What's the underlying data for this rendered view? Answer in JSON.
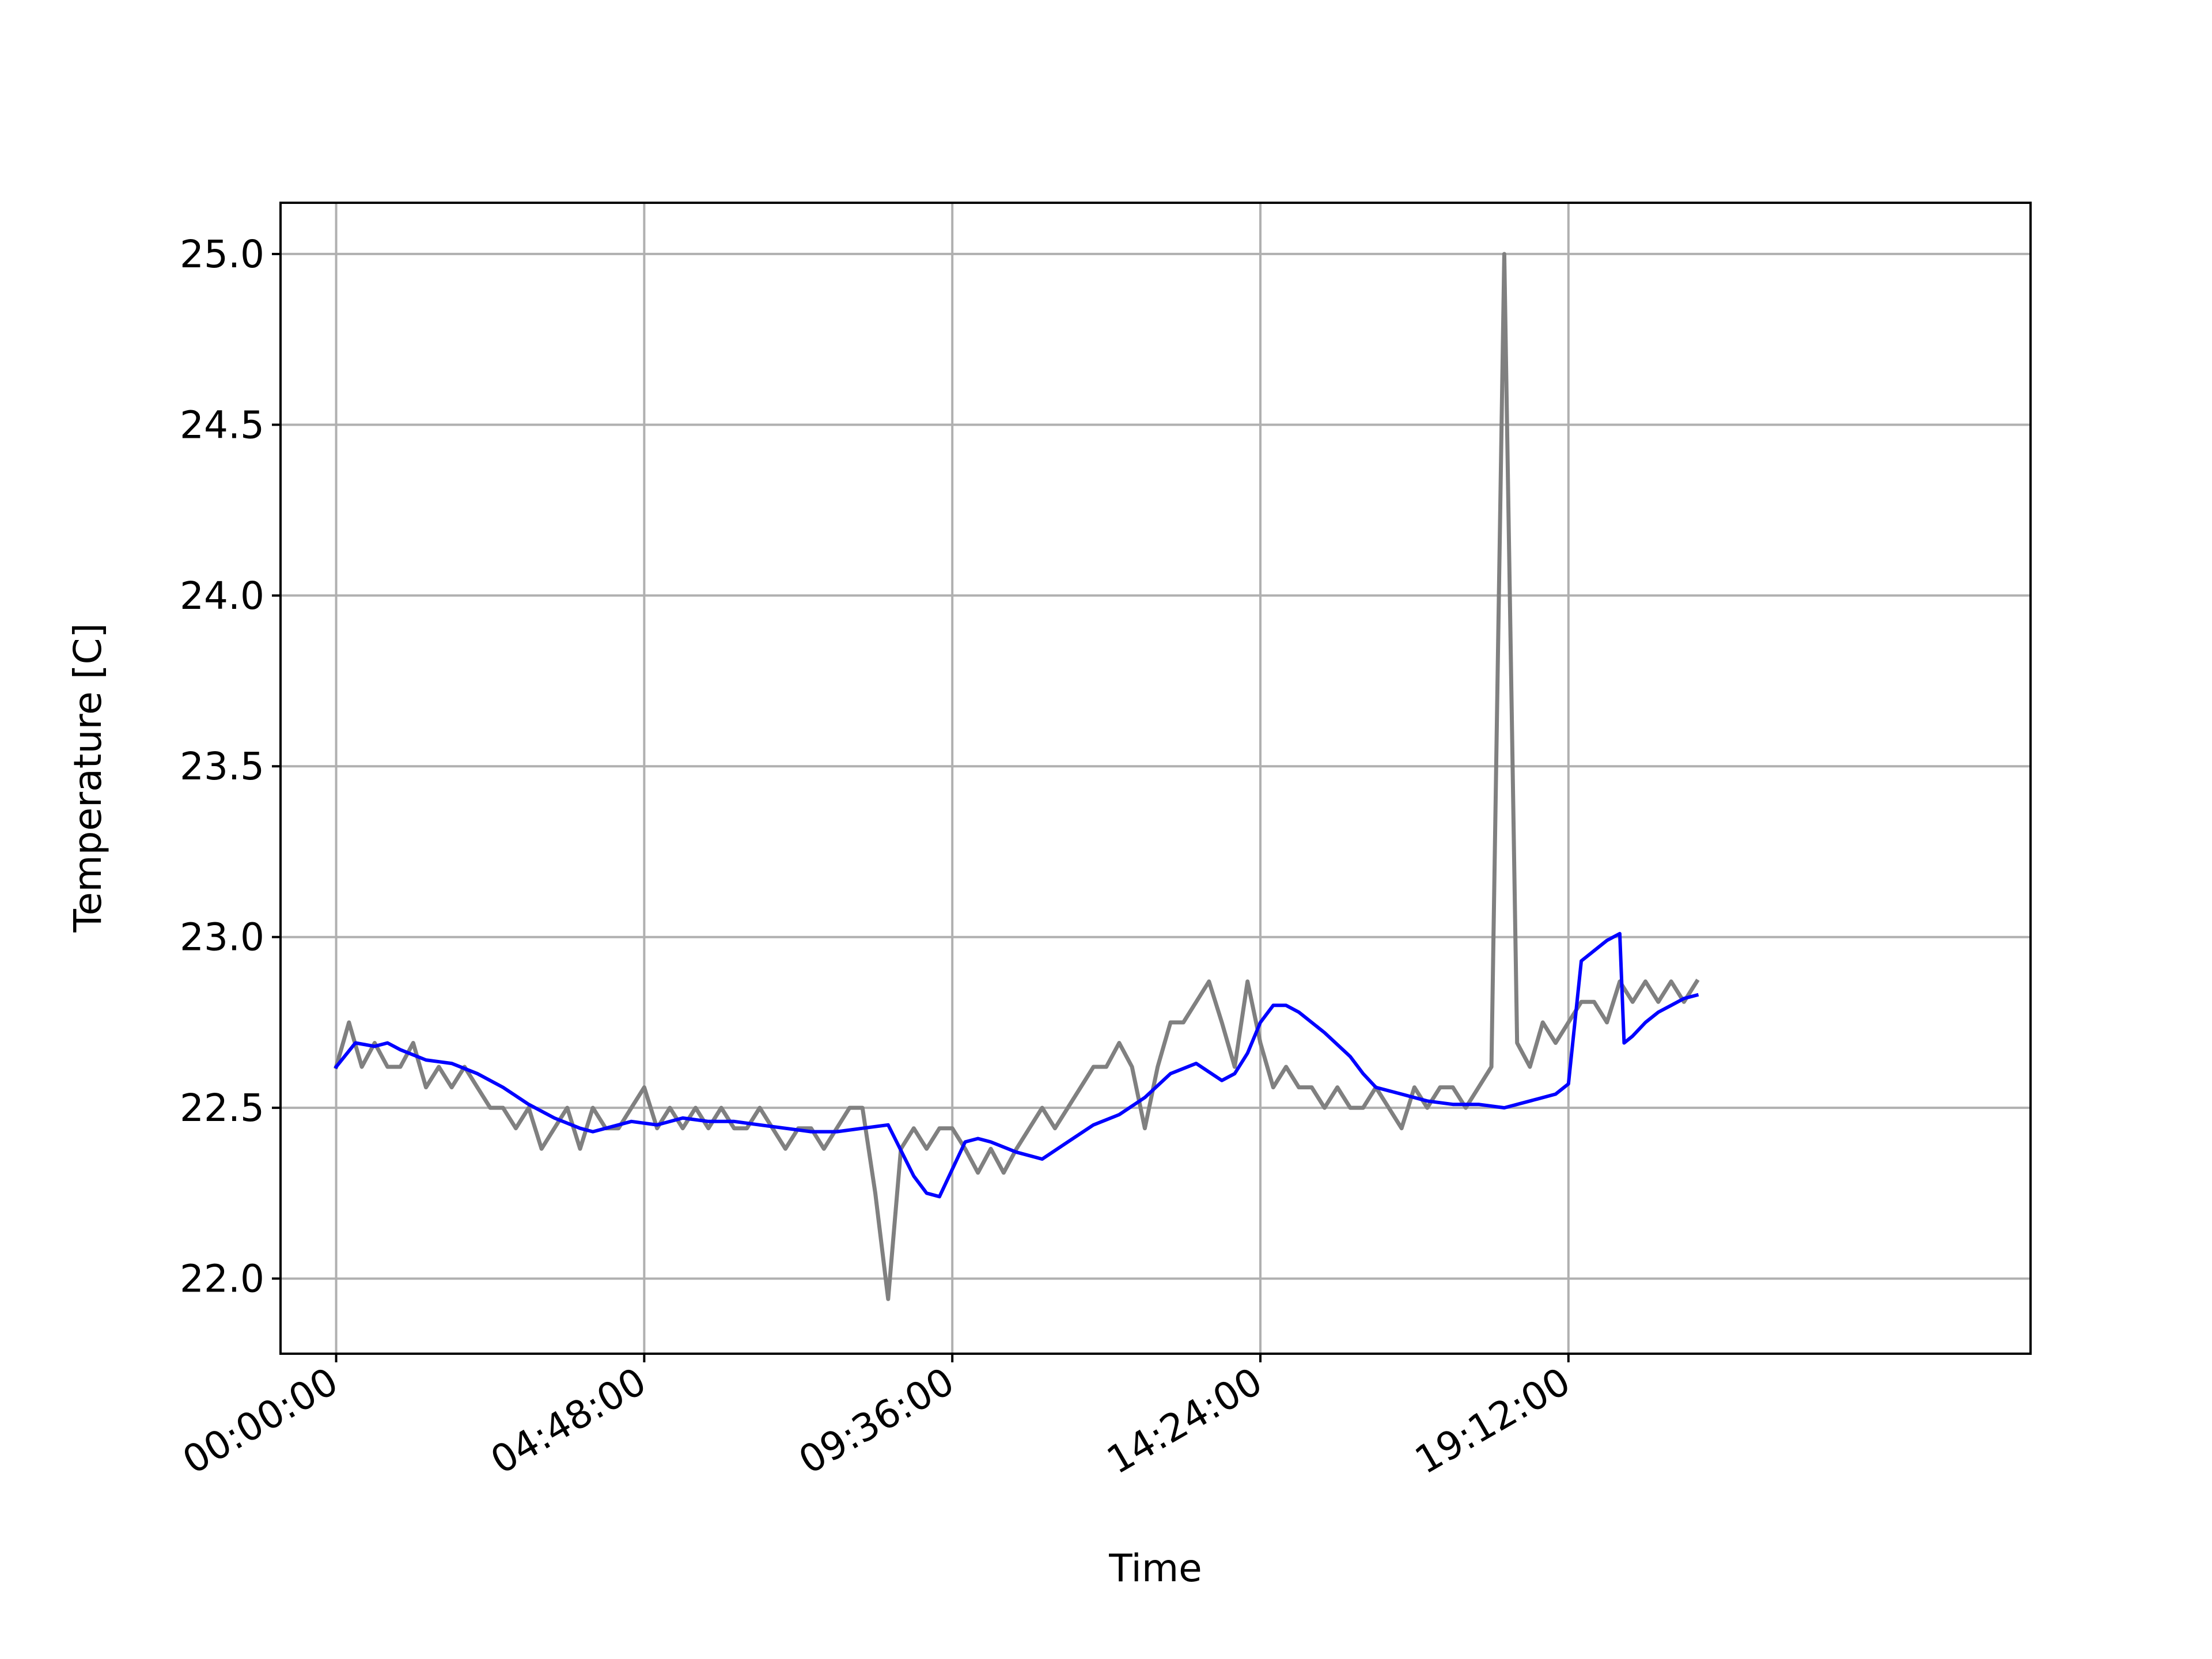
{
  "chart_data": {
    "type": "line",
    "title": "",
    "xlabel": "Time",
    "ylabel": "Temperature [C]",
    "grid": true,
    "legend": "none",
    "xlim": [
      "-00:52:00",
      "26:24:00"
    ],
    "ylim": [
      21.78,
      25.15
    ],
    "x_ticks": [
      "00:00:00",
      "04:48:00",
      "09:36:00",
      "14:24:00",
      "19:12:00"
    ],
    "y_ticks": [
      "22.0",
      "22.5",
      "23.0",
      "23.5",
      "24.0",
      "24.5",
      "25.0"
    ],
    "series": [
      {
        "color": "#808080",
        "x": [
          "00:00:00",
          "00:12:00",
          "00:24:00",
          "00:36:00",
          "00:48:00",
          "01:00:00",
          "01:12:00",
          "01:24:00",
          "01:36:00",
          "01:48:00",
          "02:00:00",
          "02:12:00",
          "02:24:00",
          "02:36:00",
          "02:48:00",
          "03:00:00",
          "03:12:00",
          "03:24:00",
          "03:36:00",
          "03:48:00",
          "04:00:00",
          "04:12:00",
          "04:24:00",
          "04:36:00",
          "04:48:00",
          "05:00:00",
          "05:12:00",
          "05:24:00",
          "05:36:00",
          "05:48:00",
          "06:00:00",
          "06:12:00",
          "06:24:00",
          "06:36:00",
          "06:48:00",
          "07:00:00",
          "07:12:00",
          "07:24:00",
          "07:36:00",
          "07:48:00",
          "08:00:00",
          "08:12:00",
          "08:24:00",
          "08:36:00",
          "08:48:00",
          "09:00:00",
          "09:12:00",
          "09:24:00",
          "09:36:00",
          "09:48:00",
          "10:00:00",
          "10:12:00",
          "10:24:00",
          "10:36:00",
          "10:48:00",
          "11:00:00",
          "11:12:00",
          "11:24:00",
          "11:36:00",
          "11:48:00",
          "12:00:00",
          "12:12:00",
          "12:24:00",
          "12:36:00",
          "12:48:00",
          "13:00:00",
          "13:12:00",
          "13:24:00",
          "13:36:00",
          "13:48:00",
          "14:00:00",
          "14:12:00",
          "14:24:00",
          "14:36:00",
          "14:48:00",
          "15:00:00",
          "15:12:00",
          "15:24:00",
          "15:36:00",
          "15:48:00",
          "16:00:00",
          "16:12:00",
          "16:24:00",
          "16:36:00",
          "16:48:00",
          "17:00:00",
          "17:12:00",
          "17:24:00",
          "17:36:00",
          "17:48:00",
          "18:00:00",
          "18:12:00",
          "18:24:00",
          "18:36:00",
          "18:48:00",
          "19:00:00",
          "19:12:00",
          "19:24:00",
          "19:36:00",
          "19:48:00",
          "20:00:00",
          "20:12:00",
          "20:24:00",
          "20:36:00",
          "20:48:00",
          "21:00:00",
          "21:12:00"
        ],
        "y": [
          22.62,
          22.75,
          22.62,
          22.69,
          22.62,
          22.62,
          22.69,
          22.56,
          22.62,
          22.56,
          22.62,
          22.56,
          22.5,
          22.5,
          22.44,
          22.5,
          22.38,
          22.44,
          22.5,
          22.38,
          22.5,
          22.44,
          22.44,
          22.5,
          22.56,
          22.44,
          22.5,
          22.44,
          22.5,
          22.44,
          22.5,
          22.44,
          22.44,
          22.5,
          22.44,
          22.38,
          22.44,
          22.44,
          22.38,
          22.44,
          22.5,
          22.5,
          22.25,
          21.94,
          22.38,
          22.44,
          22.38,
          22.44,
          22.44,
          22.38,
          22.31,
          22.38,
          22.31,
          22.38,
          22.44,
          22.5,
          22.44,
          22.5,
          22.56,
          22.62,
          22.62,
          22.69,
          22.62,
          22.44,
          22.62,
          22.75,
          22.75,
          22.81,
          22.87,
          22.75,
          22.62,
          22.87,
          22.69,
          22.56,
          22.62,
          22.56,
          22.56,
          22.5,
          22.56,
          22.5,
          22.5,
          22.56,
          22.5,
          22.44,
          22.56,
          22.5,
          22.56,
          22.56,
          22.5,
          22.56,
          22.62,
          25.0,
          22.69,
          22.62,
          22.75,
          22.69,
          22.75,
          22.81,
          22.81,
          22.75,
          22.87,
          22.81,
          22.87,
          22.81,
          22.87,
          22.81,
          22.87
        ]
      },
      {
        "color": "#0000ff",
        "x": [
          "00:00:00",
          "00:18:00",
          "00:36:00",
          "00:48:00",
          "01:00:00",
          "01:24:00",
          "01:48:00",
          "02:12:00",
          "02:36:00",
          "03:00:00",
          "03:24:00",
          "03:48:00",
          "04:00:00",
          "04:12:00",
          "04:36:00",
          "05:00:00",
          "05:24:00",
          "05:48:00",
          "06:12:00",
          "06:36:00",
          "07:00:00",
          "07:24:00",
          "07:48:00",
          "08:12:00",
          "08:36:00",
          "09:00:00",
          "09:12:00",
          "09:24:00",
          "09:36:00",
          "09:48:00",
          "10:00:00",
          "10:12:00",
          "10:36:00",
          "11:00:00",
          "11:24:00",
          "11:48:00",
          "12:12:00",
          "12:36:00",
          "13:00:00",
          "13:24:00",
          "13:48:00",
          "14:00:00",
          "14:12:00",
          "14:24:00",
          "14:36:00",
          "14:48:00",
          "15:00:00",
          "15:24:00",
          "15:48:00",
          "16:00:00",
          "16:12:00",
          "16:36:00",
          "17:00:00",
          "17:24:00",
          "17:48:00",
          "18:12:00",
          "18:36:00",
          "19:00:00",
          "19:12:00",
          "19:24:00",
          "19:36:00",
          "19:48:00",
          "20:00:00",
          "20:04:00",
          "20:12:00",
          "20:24:00",
          "20:36:00",
          "20:48:00",
          "21:00:00",
          "21:12:00"
        ],
        "y": [
          22.62,
          22.69,
          22.68,
          22.69,
          22.67,
          22.64,
          22.63,
          22.6,
          22.56,
          22.51,
          22.47,
          22.44,
          22.43,
          22.44,
          22.46,
          22.45,
          22.47,
          22.46,
          22.46,
          22.45,
          22.44,
          22.43,
          22.43,
          22.44,
          22.45,
          22.3,
          22.25,
          22.24,
          22.32,
          22.4,
          22.41,
          22.4,
          22.37,
          22.35,
          22.4,
          22.45,
          22.48,
          22.53,
          22.6,
          22.63,
          22.58,
          22.6,
          22.66,
          22.75,
          22.8,
          22.8,
          22.78,
          22.72,
          22.65,
          22.6,
          22.56,
          22.54,
          22.52,
          22.51,
          22.51,
          22.5,
          22.52,
          22.54,
          22.57,
          22.93,
          22.96,
          22.99,
          23.01,
          22.69,
          22.71,
          22.75,
          22.78,
          22.8,
          22.82,
          22.83
        ]
      }
    ]
  }
}
